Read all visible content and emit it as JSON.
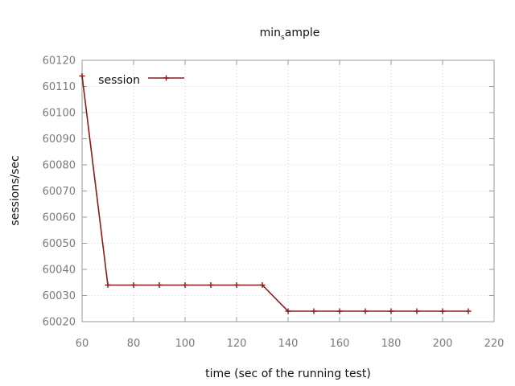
{
  "chart_data": {
    "type": "line",
    "title_main": "min",
    "title_sub": "s",
    "title_rest": "ample",
    "xlabel": "time (sec of the running test)",
    "ylabel": "sessions/sec",
    "xlim": [
      60,
      220
    ],
    "ylim": [
      60020,
      60120
    ],
    "x_ticks": [
      60,
      80,
      100,
      120,
      140,
      160,
      180,
      200,
      220
    ],
    "y_ticks": [
      60020,
      60030,
      60040,
      60050,
      60060,
      60070,
      60080,
      60090,
      60100,
      60110,
      60120
    ],
    "grid": true,
    "legend_position": "top-left",
    "series": [
      {
        "name": "session",
        "color": "#8b1a1a",
        "x": [
          60,
          70,
          80,
          90,
          100,
          110,
          120,
          130,
          140,
          150,
          160,
          170,
          180,
          190,
          200,
          210
        ],
        "y": [
          60114,
          60034,
          60034,
          60034,
          60034,
          60034,
          60034,
          60034,
          60024,
          60024,
          60024,
          60024,
          60024,
          60024,
          60024,
          60024
        ]
      }
    ]
  }
}
